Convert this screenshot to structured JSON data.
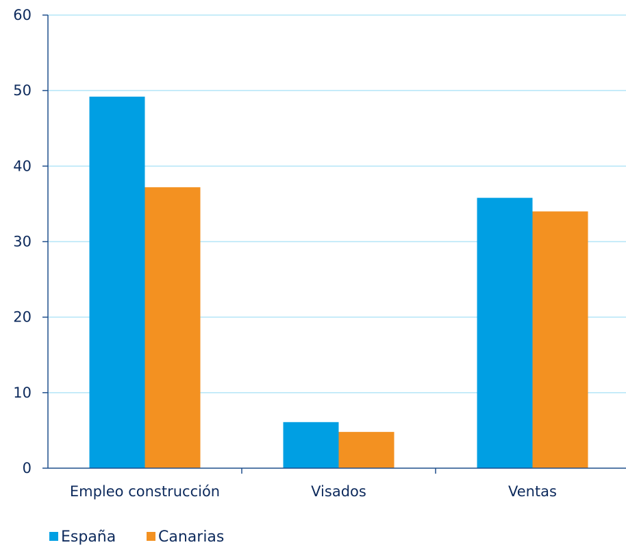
{
  "chart_data": {
    "type": "bar",
    "categories": [
      "Empleo construcción",
      "Visados",
      "Ventas"
    ],
    "series": [
      {
        "name": "España",
        "values": [
          49.2,
          6.1,
          35.8
        ],
        "color": "#009fe3"
      },
      {
        "name": "Canarias",
        "values": [
          37.2,
          4.8,
          34.0
        ],
        "color": "#f39121"
      }
    ],
    "ylim": [
      0,
      60
    ],
    "yticks": [
      0,
      10,
      20,
      30,
      40,
      50,
      60
    ],
    "grid": true,
    "legend": "bottom-left",
    "colors": {
      "axis": "#1f4e8c",
      "grid": "#b3e5f7",
      "text": "#0d2a5c"
    }
  }
}
